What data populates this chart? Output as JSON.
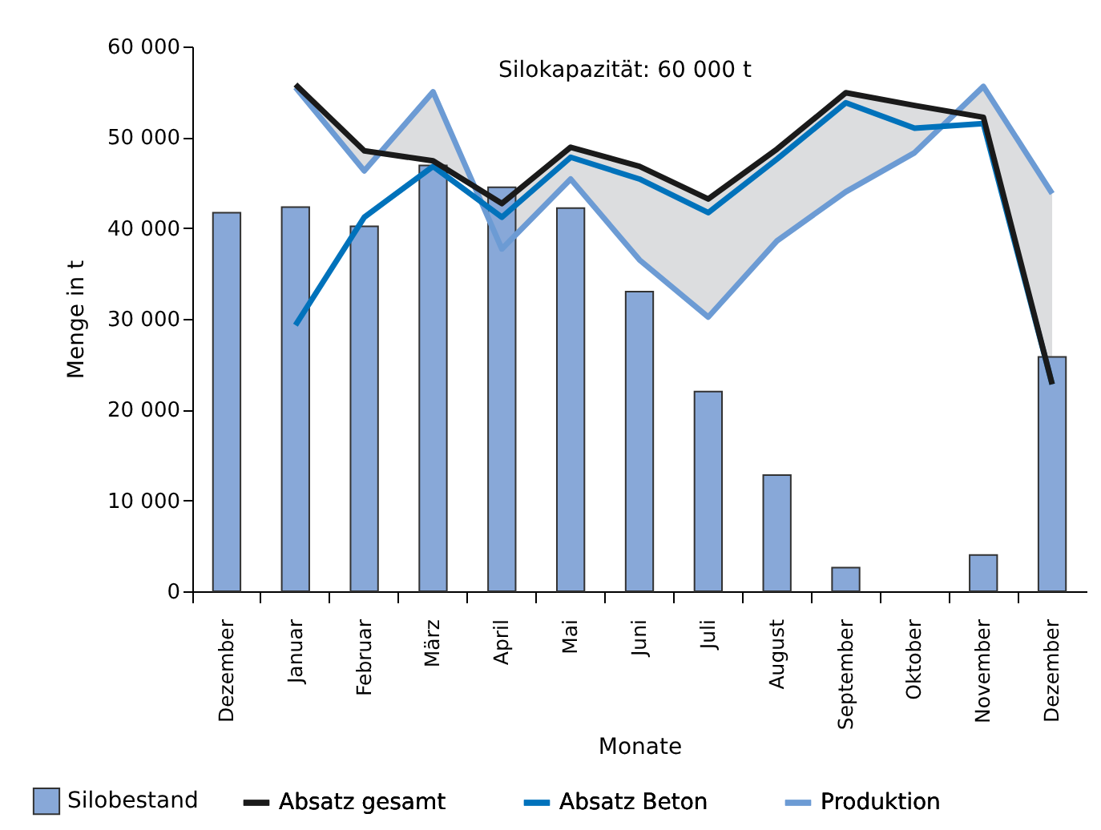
{
  "chart_data": {
    "type": "bar",
    "xlabel": "Monate",
    "ylabel": "Menge in t",
    "annotations": [
      "Silokapazität: 60 000 t"
    ],
    "categories": [
      "Dezember",
      "Januar",
      "Februar",
      "März",
      "April",
      "Mai",
      "Juni",
      "Juli",
      "August",
      "September",
      "Oktober",
      "November",
      "Dezember"
    ],
    "series": [
      {
        "name": "Silobestand",
        "color": "#88a8d8",
        "values": [
          41700,
          42300,
          40200,
          46900,
          44500,
          42200,
          33000,
          22000,
          12800,
          2600,
          null,
          4000,
          25800
        ]
      },
      {
        "name": "Absatz gesamt",
        "type": "line",
        "color": "#1a1a1a",
        "values": [
          null,
          55800,
          48500,
          47400,
          42700,
          48900,
          46800,
          43200,
          48700,
          54900,
          53500,
          52200,
          22800
        ],
        "lower": [
          null,
          55500,
          46300,
          55000,
          37700,
          45400,
          36500,
          30200,
          38600,
          44000,
          48300,
          55600,
          43800
        ],
        "upper": [
          null,
          55800,
          48500,
          47400,
          42700,
          48900,
          46800,
          43200,
          48700,
          54900,
          53500,
          52200,
          22800
        ]
      },
      {
        "name": "Absatz Beton",
        "type": "line",
        "color": "#0072bb",
        "values": [
          null,
          29300,
          41200,
          46800,
          41200,
          47800,
          45400,
          41700,
          47600,
          53800,
          51000,
          51500,
          22800
        ]
      },
      {
        "name": "Produktion",
        "type": "line",
        "color": "#6c9bd4",
        "values": [
          null,
          55500,
          46300,
          55000,
          37700,
          45400,
          36500,
          30200,
          38600,
          44000,
          48300,
          55600,
          43800
        ]
      }
    ],
    "ylim": [
      0,
      60000
    ],
    "yticks": [
      0,
      {
        "value": 10000,
        "label": "10 000"
      },
      {
        "value": 20000,
        "label": "20 000"
      },
      {
        "value": 30000,
        "label": "30 000"
      },
      {
        "value": 40000,
        "label": "40 000"
      },
      {
        "value": 50000,
        "label": "50 000"
      },
      {
        "value": 60000,
        "label": "60 000"
      }
    ],
    "legend": "bottom"
  }
}
